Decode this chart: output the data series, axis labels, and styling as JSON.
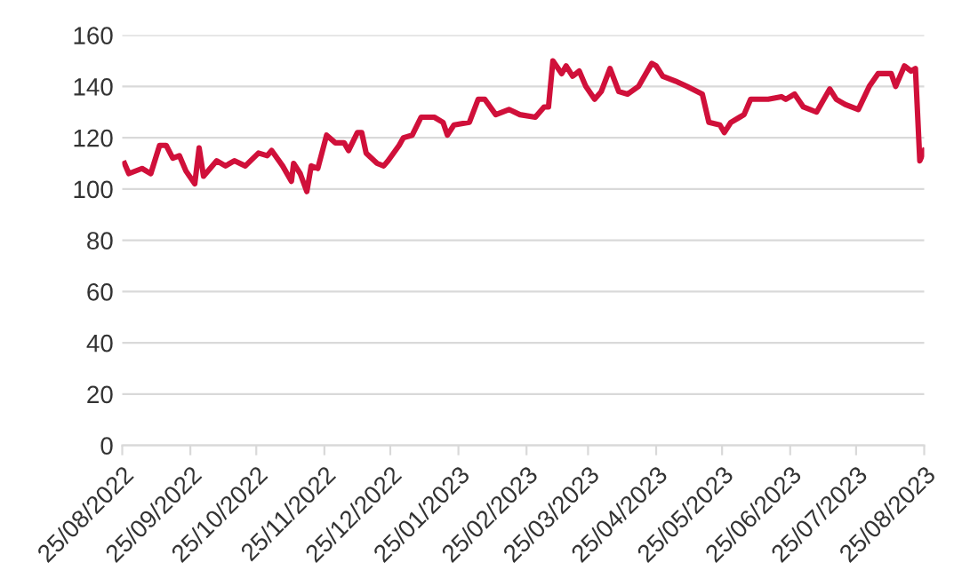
{
  "chart_data": {
    "type": "line",
    "grid": "y",
    "marker": "none",
    "line_style": "solid",
    "x": [
      "2022-08-26",
      "2022-08-28",
      "2022-09-03",
      "2022-09-07",
      "2022-09-11",
      "2022-09-14",
      "2022-09-17",
      "2022-09-20",
      "2022-09-23",
      "2022-09-27",
      "2022-09-29",
      "2022-10-01",
      "2022-10-07",
      "2022-10-11",
      "2022-10-15",
      "2022-10-20",
      "2022-10-26",
      "2022-10-30",
      "2022-11-01",
      "2022-11-06",
      "2022-11-10",
      "2022-11-11",
      "2022-11-14",
      "2022-11-17",
      "2022-11-19",
      "2022-11-22",
      "2022-11-26",
      "2022-11-30",
      "2022-12-04",
      "2022-12-06",
      "2022-12-10",
      "2022-12-12",
      "2022-12-14",
      "2022-12-19",
      "2022-12-22",
      "2022-12-24",
      "2022-12-29",
      "2022-12-31",
      "2023-01-04",
      "2023-01-08",
      "2023-01-14",
      "2023-01-18",
      "2023-01-20",
      "2023-01-23",
      "2023-01-30",
      "2023-02-03",
      "2023-02-06",
      "2023-02-11",
      "2023-02-17",
      "2023-02-22",
      "2023-03-01",
      "2023-03-05",
      "2023-03-07",
      "2023-03-09",
      "2023-03-13",
      "2023-03-15",
      "2023-03-18",
      "2023-03-21",
      "2023-03-24",
      "2023-03-28",
      "2023-03-31",
      "2023-04-04",
      "2023-04-08",
      "2023-04-12",
      "2023-04-17",
      "2023-04-23",
      "2023-04-25",
      "2023-04-28",
      "2023-05-04",
      "2023-05-09",
      "2023-05-16",
      "2023-05-19",
      "2023-05-24",
      "2023-05-26",
      "2023-05-29",
      "2023-06-02",
      "2023-06-04",
      "2023-06-07",
      "2023-06-15",
      "2023-06-21",
      "2023-06-23",
      "2023-06-27",
      "2023-07-01",
      "2023-07-07",
      "2023-07-13",
      "2023-07-16",
      "2023-07-20",
      "2023-07-26",
      "2023-07-31",
      "2023-08-04",
      "2023-08-10",
      "2023-08-12",
      "2023-08-16",
      "2023-08-19",
      "2023-08-21",
      "2023-08-23",
      "2023-08-25"
    ],
    "series": [
      {
        "color": "#d0103a",
        "values": [
          110,
          106,
          108,
          106,
          117,
          117,
          112,
          113,
          107,
          102,
          116,
          105,
          111,
          109,
          111,
          109,
          114,
          113,
          115,
          109,
          103,
          110,
          106,
          99,
          109,
          108,
          121,
          118,
          118,
          115,
          122,
          122,
          114,
          110,
          109,
          111,
          117,
          120,
          121,
          128,
          128,
          126,
          121,
          125,
          126,
          135,
          135,
          129,
          131,
          129,
          128,
          132,
          132,
          150,
          145,
          148,
          144,
          146,
          140,
          135,
          138,
          147,
          138,
          137,
          140,
          149,
          148,
          144,
          142,
          140,
          137,
          126,
          125,
          122,
          126,
          128,
          129,
          135,
          135,
          136,
          135,
          137,
          132,
          130,
          139,
          135,
          133,
          131,
          140,
          145,
          145,
          140,
          148,
          146,
          147,
          111,
          115
        ]
      }
    ],
    "xlim": [
      "2022-08-25",
      "2023-08-25"
    ],
    "xticks": [
      {
        "value": "2022-08-25",
        "label": "25/08/2022"
      },
      {
        "value": "2022-09-25",
        "label": "25/09/2022"
      },
      {
        "value": "2022-10-25",
        "label": "25/10/2022"
      },
      {
        "value": "2022-11-25",
        "label": "25/11/2022"
      },
      {
        "value": "2022-12-25",
        "label": "25/12/2022"
      },
      {
        "value": "2023-01-25",
        "label": "25/01/2023"
      },
      {
        "value": "2023-02-25",
        "label": "25/02/2023"
      },
      {
        "value": "2023-03-25",
        "label": "25/03/2023"
      },
      {
        "value": "2023-04-25",
        "label": "25/04/2023"
      },
      {
        "value": "2023-05-25",
        "label": "25/05/2023"
      },
      {
        "value": "2023-06-25",
        "label": "25/06/2023"
      },
      {
        "value": "2023-07-25",
        "label": "25/07/2023"
      },
      {
        "value": "2023-08-25",
        "label": "25/08/2023"
      }
    ],
    "ylim": [
      0,
      160
    ],
    "yticks": [
      0,
      20,
      40,
      60,
      80,
      100,
      120,
      140,
      160
    ]
  }
}
